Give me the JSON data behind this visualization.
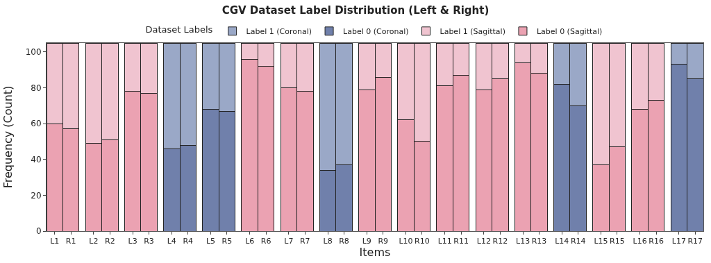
{
  "chart_data": {
    "type": "bar",
    "title": "CGV Dataset Label Distribution (Left & Right)",
    "xlabel": "Items",
    "ylabel": "Frequency (Count)",
    "legend_title": "Dataset Labels",
    "categories": [
      "L1",
      "R1",
      null,
      "L2",
      "R2",
      null,
      "L3",
      "R3",
      null,
      "L4",
      "R4",
      null,
      "L5",
      "R5",
      null,
      "L6",
      "R6",
      null,
      "L7",
      "R7",
      null,
      "L8",
      "R8",
      null,
      "L9",
      "R9",
      null,
      "L10",
      "R10",
      null,
      "L11",
      "R11",
      null,
      "L12",
      "R12",
      null,
      "L13",
      "R13",
      null,
      "L14",
      "R14",
      null,
      "L15",
      "R15",
      null,
      "L16",
      "R16",
      null,
      "L17",
      "R17"
    ],
    "stacked": true,
    "series": [
      {
        "name": "Label 0 (Sagittal)",
        "color": "#eba2b2",
        "values": [
          60,
          57,
          null,
          49,
          51,
          null,
          78,
          77,
          null,
          null,
          null,
          null,
          null,
          null,
          null,
          96,
          92,
          null,
          80,
          78,
          null,
          null,
          null,
          null,
          79,
          86,
          null,
          62,
          50,
          null,
          81,
          87,
          null,
          79,
          85,
          null,
          94,
          88,
          null,
          null,
          null,
          null,
          37,
          47,
          null,
          68,
          73,
          null,
          null,
          null
        ]
      },
      {
        "name": "Label 1 (Sagittal)",
        "color": "#f0c4d0",
        "values": [
          45,
          48,
          null,
          56,
          54,
          null,
          27,
          28,
          null,
          null,
          null,
          null,
          null,
          null,
          null,
          9,
          13,
          null,
          25,
          27,
          null,
          null,
          null,
          null,
          26,
          19,
          null,
          43,
          55,
          null,
          24,
          18,
          null,
          26,
          20,
          null,
          11,
          17,
          null,
          null,
          null,
          null,
          68,
          58,
          null,
          37,
          32,
          null,
          null,
          null
        ]
      },
      {
        "name": "Label 0 (Coronal)",
        "color": "#7080ab",
        "values": [
          null,
          null,
          null,
          null,
          null,
          null,
          null,
          null,
          null,
          46,
          48,
          null,
          68,
          67,
          null,
          null,
          null,
          null,
          null,
          null,
          null,
          34,
          37,
          null,
          null,
          null,
          null,
          null,
          null,
          null,
          null,
          null,
          null,
          null,
          null,
          null,
          null,
          null,
          null,
          82,
          70,
          null,
          null,
          null,
          null,
          null,
          null,
          null,
          93,
          85
        ]
      },
      {
        "name": "Label 1 (Coronal)",
        "color": "#9aa8c7",
        "values": [
          null,
          null,
          null,
          null,
          null,
          null,
          null,
          null,
          null,
          59,
          57,
          null,
          37,
          38,
          null,
          null,
          null,
          null,
          null,
          null,
          null,
          71,
          68,
          null,
          null,
          null,
          null,
          null,
          null,
          null,
          null,
          null,
          null,
          null,
          null,
          null,
          null,
          null,
          null,
          23,
          35,
          null,
          null,
          null,
          null,
          null,
          null,
          null,
          12,
          20
        ]
      }
    ],
    "ylim": [
      0,
      105
    ],
    "yticks": [
      0,
      20,
      40,
      60,
      80,
      100
    ],
    "legend": "top"
  }
}
